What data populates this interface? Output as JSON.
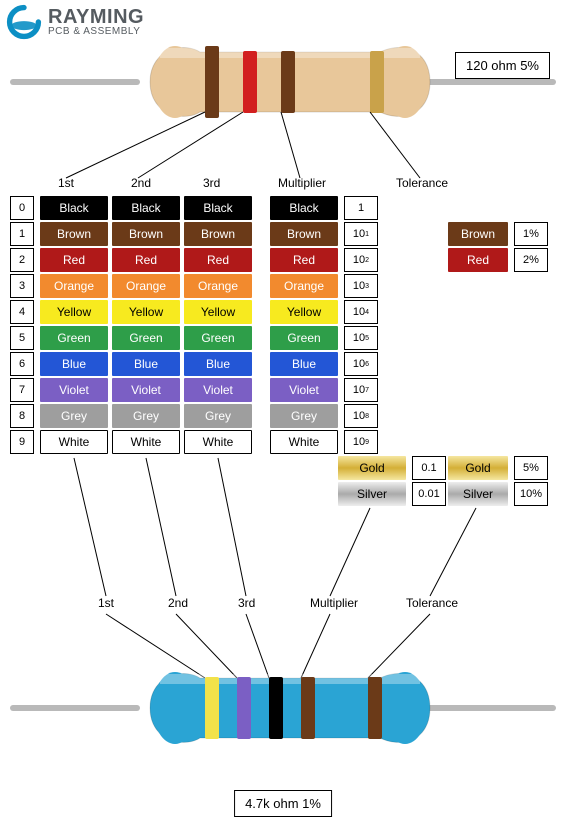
{
  "logo": {
    "main": "RAYMING",
    "sub": "PCB & ASSEMBLY",
    "color": "#0c8fc4"
  },
  "topResistor": {
    "body_color": "#e8c79a",
    "lead_color": "#b9b9b9",
    "bands": [
      "#6b3a18",
      "#d21f1f",
      "#6b3a18",
      "#c9a24a"
    ],
    "value": "120 ohm 5%"
  },
  "bottomResistor": {
    "body_color": "#2aa4d4",
    "lead_color": "#b9b9b9",
    "bands": [
      "#f2e24a",
      "#7b5fc4",
      "#000000",
      "#6b3a18",
      "#6b3a18"
    ],
    "value": "4.7k ohm 1%"
  },
  "headers": {
    "d1": "1st",
    "d2": "2nd",
    "d3": "3rd",
    "mult": "Multiplier",
    "tol": "Tolerance"
  },
  "colors": [
    {
      "digit": "0",
      "name": "Black",
      "hex": "#000000",
      "text": "light",
      "mult": "1"
    },
    {
      "digit": "1",
      "name": "Brown",
      "hex": "#6b3a18",
      "text": "light",
      "mult": "10^1"
    },
    {
      "digit": "2",
      "name": "Red",
      "hex": "#b01919",
      "text": "light",
      "mult": "10^2"
    },
    {
      "digit": "3",
      "name": "Orange",
      "hex": "#f28a2e",
      "text": "light",
      "mult": "10^3"
    },
    {
      "digit": "4",
      "name": "Yellow",
      "hex": "#f7ea1f",
      "text": "dark",
      "mult": "10^4"
    },
    {
      "digit": "5",
      "name": "Green",
      "hex": "#2e9e49",
      "text": "light",
      "mult": "10^5"
    },
    {
      "digit": "6",
      "name": "Blue",
      "hex": "#2356d6",
      "text": "light",
      "mult": "10^6"
    },
    {
      "digit": "7",
      "name": "Violet",
      "hex": "#7b5fc4",
      "text": "light",
      "mult": "10^7"
    },
    {
      "digit": "8",
      "name": "Grey",
      "hex": "#9e9e9e",
      "text": "light",
      "mult": "10^8"
    },
    {
      "digit": "9",
      "name": "White",
      "hex": "#ffffff",
      "text": "dark",
      "mult": "10^9",
      "border": true
    }
  ],
  "extraMult": [
    {
      "name": "Gold",
      "class": "grad-gold",
      "text": "dark",
      "mult": "0.1"
    },
    {
      "name": "Silver",
      "class": "grad-silver",
      "text": "dark",
      "mult": "0.01"
    }
  ],
  "tolerance": [
    {
      "name": "Brown",
      "hex": "#6b3a18",
      "text": "light",
      "val": "1%"
    },
    {
      "name": "Red",
      "hex": "#b01919",
      "text": "light",
      "val": "2%"
    }
  ],
  "toleranceExtra": [
    {
      "name": "Gold",
      "class": "grad-gold",
      "text": "dark",
      "val": "5%"
    },
    {
      "name": "Silver",
      "class": "grad-silver",
      "text": "dark",
      "val": "10%"
    }
  ]
}
